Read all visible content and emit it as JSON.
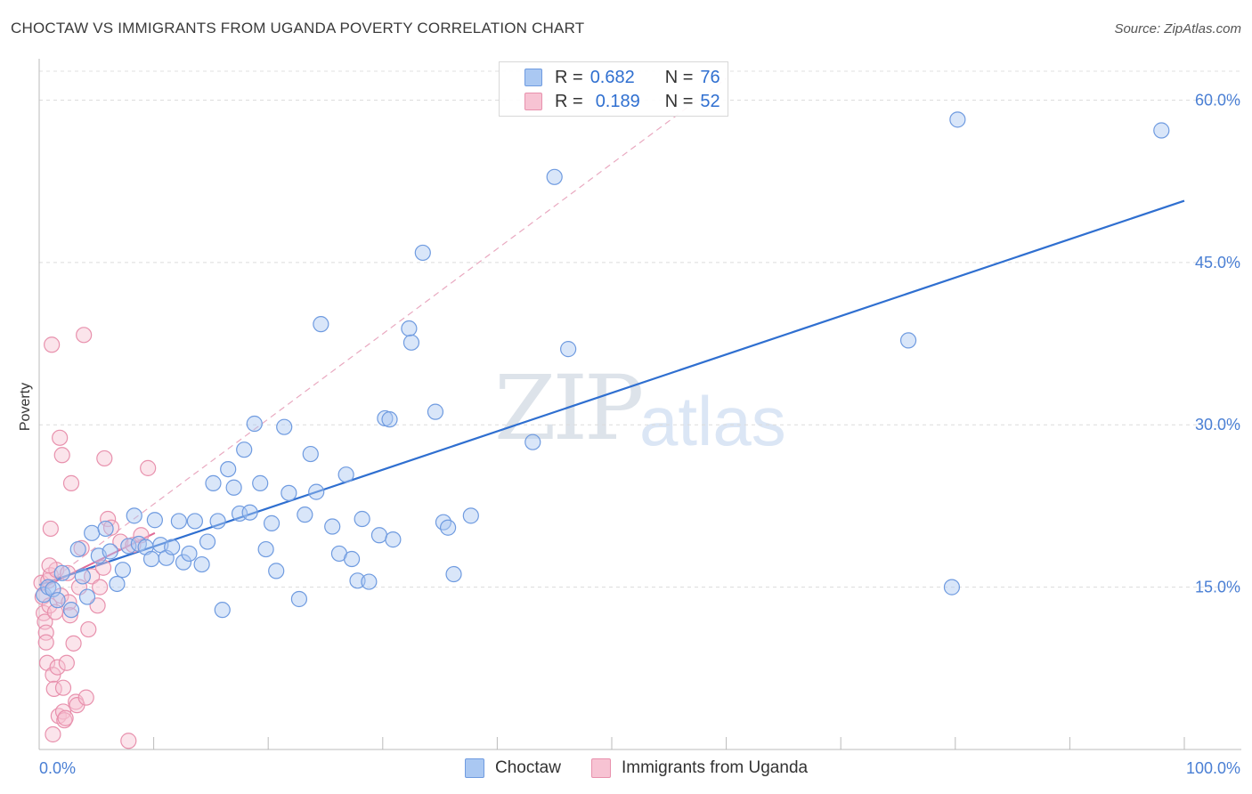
{
  "title": "CHOCTAW VS IMMIGRANTS FROM UGANDA POVERTY CORRELATION CHART",
  "source": "Source: ZipAtlas.com",
  "watermark": {
    "zip": "ZIP",
    "atlas": "atlas"
  },
  "legend": {
    "rows": [
      {
        "r_label": "R =",
        "r_value": "0.682",
        "n_label": "N =",
        "n_value": "76",
        "color": "#aac8f2",
        "border": "#6f9be0"
      },
      {
        "r_label": "R =",
        "r_value": "0.189",
        "n_label": "N =",
        "n_value": "52",
        "color": "#f7c3d3",
        "border": "#e891ad"
      }
    ]
  },
  "bottom_legend": [
    {
      "label": "Choctaw",
      "color": "#aac8f2",
      "border": "#6f9be0"
    },
    {
      "label": "Immigrants from Uganda",
      "color": "#f7c3d3",
      "border": "#e891ad"
    }
  ],
  "chart_data": {
    "type": "scatter",
    "title": "CHOCTAW VS IMMIGRANTS FROM UGANDA POVERTY CORRELATION CHART",
    "xlabel": "",
    "ylabel": "Poverty",
    "xlim": [
      0,
      100
    ],
    "ylim": [
      0,
      63
    ],
    "x_tick_labels": [
      "0.0%",
      "100.0%"
    ],
    "y_ticks": [
      15,
      30,
      45,
      60
    ],
    "y_tick_labels": [
      "15.0%",
      "30.0%",
      "45.0%",
      "60.0%"
    ],
    "series": [
      {
        "name": "Choctaw",
        "color": "#aac8f2",
        "edge": "#6f9be0",
        "trend": {
          "x": [
            0,
            100
          ],
          "y": [
            15.2,
            50.7
          ],
          "color": "#2f6fd0"
        },
        "points": [
          [
            0.4,
            14.3
          ],
          [
            0.8,
            15.0
          ],
          [
            1.2,
            14.8
          ],
          [
            1.6,
            13.8
          ],
          [
            2.0,
            16.3
          ],
          [
            2.8,
            12.9
          ],
          [
            3.4,
            18.5
          ],
          [
            3.8,
            16.0
          ],
          [
            4.2,
            14.1
          ],
          [
            4.6,
            20.0
          ],
          [
            5.2,
            17.9
          ],
          [
            5.8,
            20.4
          ],
          [
            6.2,
            18.3
          ],
          [
            6.8,
            15.3
          ],
          [
            7.3,
            16.6
          ],
          [
            7.8,
            18.8
          ],
          [
            8.3,
            21.6
          ],
          [
            8.7,
            19.0
          ],
          [
            9.3,
            18.7
          ],
          [
            9.8,
            17.6
          ],
          [
            10.1,
            21.2
          ],
          [
            10.6,
            18.9
          ],
          [
            11.1,
            17.7
          ],
          [
            11.6,
            18.7
          ],
          [
            12.2,
            21.1
          ],
          [
            12.6,
            17.3
          ],
          [
            13.1,
            18.1
          ],
          [
            13.6,
            21.1
          ],
          [
            14.2,
            17.1
          ],
          [
            14.7,
            19.2
          ],
          [
            15.2,
            24.6
          ],
          [
            15.6,
            21.1
          ],
          [
            16.0,
            12.9
          ],
          [
            16.5,
            25.9
          ],
          [
            17.0,
            24.2
          ],
          [
            17.5,
            21.8
          ],
          [
            17.9,
            27.7
          ],
          [
            18.4,
            21.9
          ],
          [
            18.8,
            30.1
          ],
          [
            19.3,
            24.6
          ],
          [
            19.8,
            18.5
          ],
          [
            20.3,
            20.9
          ],
          [
            20.7,
            16.5
          ],
          [
            21.4,
            29.8
          ],
          [
            21.8,
            23.7
          ],
          [
            22.7,
            13.9
          ],
          [
            23.2,
            21.7
          ],
          [
            23.7,
            27.3
          ],
          [
            24.2,
            23.8
          ],
          [
            24.6,
            39.3
          ],
          [
            25.6,
            20.6
          ],
          [
            26.2,
            18.1
          ],
          [
            26.8,
            25.4
          ],
          [
            27.3,
            17.6
          ],
          [
            27.8,
            15.6
          ],
          [
            28.2,
            21.3
          ],
          [
            28.8,
            15.5
          ],
          [
            29.7,
            19.8
          ],
          [
            30.2,
            30.6
          ],
          [
            30.6,
            30.5
          ],
          [
            30.9,
            19.4
          ],
          [
            32.3,
            38.9
          ],
          [
            32.5,
            37.6
          ],
          [
            33.5,
            45.9
          ],
          [
            34.6,
            31.2
          ],
          [
            35.3,
            21.0
          ],
          [
            35.7,
            20.5
          ],
          [
            36.2,
            16.2
          ],
          [
            37.7,
            21.6
          ],
          [
            43.1,
            28.4
          ],
          [
            45.0,
            52.9
          ],
          [
            46.2,
            37.0
          ],
          [
            75.9,
            37.8
          ],
          [
            79.7,
            15.0
          ],
          [
            80.2,
            58.2
          ],
          [
            98.0,
            57.2
          ]
        ]
      },
      {
        "name": "Immigrants from Uganda",
        "color": "#f7c3d3",
        "edge": "#e891ad",
        "trend": {
          "x": [
            0,
            10.1
          ],
          "y": [
            14.8,
            20.0
          ],
          "color": "#e06b98"
        },
        "trend_ext": {
          "x": [
            0,
            60
          ],
          "y": [
            14.8,
            62.0
          ],
          "color": "#e9a9c0"
        },
        "points": [
          [
            0.2,
            15.4
          ],
          [
            0.3,
            14.1
          ],
          [
            0.4,
            12.6
          ],
          [
            0.5,
            11.8
          ],
          [
            0.6,
            10.8
          ],
          [
            0.6,
            9.9
          ],
          [
            0.7,
            8.0
          ],
          [
            0.8,
            15.6
          ],
          [
            0.9,
            13.3
          ],
          [
            1.0,
            16.1
          ],
          [
            1.0,
            20.4
          ],
          [
            1.1,
            37.4
          ],
          [
            1.2,
            6.9
          ],
          [
            1.3,
            5.6
          ],
          [
            1.4,
            12.7
          ],
          [
            1.5,
            16.6
          ],
          [
            1.6,
            7.6
          ],
          [
            1.7,
            3.1
          ],
          [
            1.8,
            28.8
          ],
          [
            1.9,
            14.2
          ],
          [
            2.0,
            27.2
          ],
          [
            2.1,
            3.5
          ],
          [
            2.1,
            5.7
          ],
          [
            2.2,
            2.7
          ],
          [
            2.3,
            2.9
          ],
          [
            2.4,
            8.0
          ],
          [
            2.5,
            16.3
          ],
          [
            2.6,
            13.6
          ],
          [
            2.7,
            12.4
          ],
          [
            2.8,
            24.6
          ],
          [
            3.0,
            9.8
          ],
          [
            3.2,
            4.4
          ],
          [
            3.3,
            4.1
          ],
          [
            3.5,
            15.0
          ],
          [
            3.7,
            18.6
          ],
          [
            3.9,
            38.3
          ],
          [
            4.1,
            4.8
          ],
          [
            4.3,
            11.1
          ],
          [
            4.6,
            16.0
          ],
          [
            5.1,
            13.3
          ],
          [
            5.3,
            15.0
          ],
          [
            5.6,
            16.8
          ],
          [
            5.7,
            26.9
          ],
          [
            6.0,
            21.3
          ],
          [
            6.3,
            20.5
          ],
          [
            7.1,
            19.2
          ],
          [
            7.8,
            0.8
          ],
          [
            8.2,
            18.9
          ],
          [
            8.9,
            19.8
          ],
          [
            9.5,
            26.0
          ],
          [
            1.2,
            1.4
          ],
          [
            0.9,
            17.0
          ]
        ]
      }
    ]
  }
}
